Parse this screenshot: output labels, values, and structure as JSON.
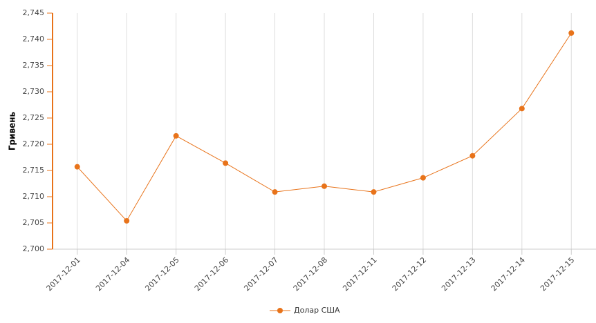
{
  "chart_data": {
    "type": "line",
    "y_label": "Гривень",
    "categories": [
      "2017-12-01",
      "2017-12-04",
      "2017-12-05",
      "2017-12-06",
      "2017-12-07",
      "2017-12-08",
      "2017-12-11",
      "2017-12-12",
      "2017-12-13",
      "2017-12-14",
      "2017-12-15"
    ],
    "series": [
      {
        "name": "Долар США",
        "color": "#e8731a",
        "values": [
          2.7157,
          2.7054,
          2.7216,
          2.7164,
          2.7109,
          2.712,
          2.7109,
          2.7136,
          2.7178,
          2.7268,
          2.7412
        ]
      }
    ],
    "ylim": [
      2.7,
      2.745
    ],
    "yticks": [
      {
        "value": 2.7,
        "label": "2,700"
      },
      {
        "value": 2.705,
        "label": "2,705"
      },
      {
        "value": 2.71,
        "label": "2,710"
      },
      {
        "value": 2.715,
        "label": "2,715"
      },
      {
        "value": 2.72,
        "label": "2,720"
      },
      {
        "value": 2.725,
        "label": "2,725"
      },
      {
        "value": 2.73,
        "label": "2,730"
      },
      {
        "value": 2.735,
        "label": "2,735"
      },
      {
        "value": 2.74,
        "label": "2,740"
      },
      {
        "value": 2.745,
        "label": "2,745"
      }
    ],
    "grid": true
  }
}
